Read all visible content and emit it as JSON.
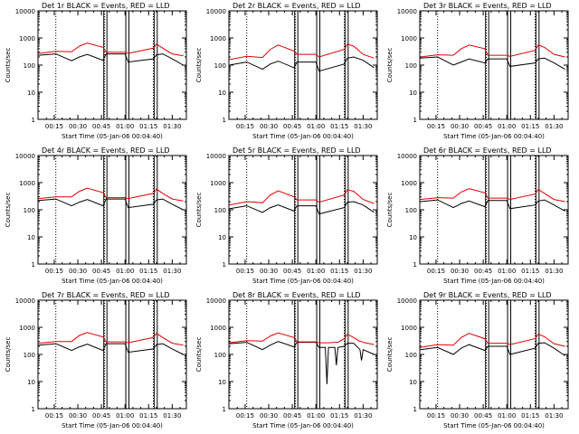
{
  "colors": {
    "events": "#000000",
    "lld": "#e00000",
    "axis": "#000000",
    "background": "#ffffff"
  },
  "common": {
    "ylabel": "Counts/sec",
    "xlabel": "Start Time (05-Jan-06 00:04:40)",
    "yscale": "log",
    "ylim": [
      1,
      10000
    ],
    "ytick_labels": [
      "1",
      "10",
      "100",
      "1000",
      "10000"
    ],
    "x_unit": "minutes",
    "xlim": [
      4.67,
      99
    ],
    "xtick_values": [
      15,
      30,
      45,
      60,
      75,
      90
    ],
    "xtick_labels": [
      "00:15",
      "00:30",
      "00:45",
      "01:00",
      "01:15",
      "01:30"
    ],
    "dotted_lines": [
      16,
      47,
      78
    ],
    "gap_markers": [
      [
        46.5,
        48.5
      ],
      [
        60.5,
        62.5
      ],
      [
        78.5,
        80.5
      ]
    ]
  },
  "chart_data": [
    {
      "type": "line",
      "title": "Det 1r  BLACK = Events, RED = LLD",
      "x": [
        5,
        16,
        26,
        31,
        36,
        46,
        48,
        60,
        62,
        78,
        80,
        84,
        90,
        97
      ],
      "series": [
        {
          "name": "Events",
          "values": [
            230,
            260,
            145,
            200,
            250,
            150,
            260,
            260,
            130,
            170,
            240,
            260,
            170,
            100
          ]
        },
        {
          "name": "LLD",
          "values": [
            270,
            320,
            310,
            500,
            650,
            450,
            300,
            300,
            270,
            420,
            600,
            420,
            260,
            220
          ]
        }
      ]
    },
    {
      "type": "line",
      "title": "Det 2r  BLACK = Events, RED = LLD",
      "x": [
        5,
        16,
        26,
        31,
        36,
        46,
        48,
        60,
        62,
        78,
        80,
        84,
        90,
        97
      ],
      "series": [
        {
          "name": "Events",
          "values": [
            100,
            130,
            70,
            110,
            140,
            80,
            130,
            130,
            60,
            110,
            180,
            200,
            150,
            80
          ]
        },
        {
          "name": "LLD",
          "values": [
            160,
            210,
            190,
            380,
            550,
            330,
            250,
            250,
            200,
            380,
            600,
            500,
            250,
            180
          ]
        }
      ]
    },
    {
      "type": "line",
      "title": "Det 3r  BLACK = Events, RED = LLD",
      "x": [
        5,
        16,
        26,
        31,
        36,
        46,
        48,
        60,
        62,
        78,
        80,
        84,
        90,
        97
      ],
      "series": [
        {
          "name": "Events",
          "values": [
            180,
            200,
            100,
            130,
            170,
            120,
            170,
            170,
            90,
            120,
            170,
            180,
            120,
            70
          ]
        },
        {
          "name": "LLD",
          "values": [
            200,
            240,
            230,
            400,
            550,
            400,
            230,
            230,
            210,
            350,
            550,
            450,
            250,
            200
          ]
        }
      ]
    },
    {
      "type": "line",
      "title": "Det 4r  BLACK = Events, RED = LLD",
      "x": [
        5,
        16,
        26,
        31,
        36,
        46,
        48,
        60,
        62,
        78,
        80,
        84,
        90,
        97
      ],
      "series": [
        {
          "name": "Events",
          "values": [
            220,
            250,
            140,
            190,
            240,
            140,
            250,
            250,
            120,
            160,
            230,
            250,
            160,
            100
          ]
        },
        {
          "name": "LLD",
          "values": [
            260,
            300,
            300,
            480,
            620,
            430,
            280,
            280,
            260,
            400,
            580,
            400,
            250,
            210
          ]
        }
      ]
    },
    {
      "type": "line",
      "title": "Det 5r  BLACK = Events, RED = LLD",
      "x": [
        5,
        16,
        26,
        31,
        36,
        46,
        48,
        60,
        62,
        78,
        80,
        84,
        90,
        97
      ],
      "series": [
        {
          "name": "Events",
          "values": [
            110,
            140,
            80,
            120,
            150,
            90,
            140,
            140,
            70,
            120,
            190,
            200,
            150,
            80
          ]
        },
        {
          "name": "LLD",
          "values": [
            150,
            200,
            180,
            350,
            500,
            300,
            230,
            230,
            190,
            350,
            550,
            480,
            240,
            170
          ]
        }
      ]
    },
    {
      "type": "line",
      "title": "Det 6r  BLACK = Events, RED = LLD",
      "x": [
        5,
        16,
        26,
        31,
        36,
        46,
        48,
        60,
        62,
        78,
        80,
        84,
        90,
        97
      ],
      "series": [
        {
          "name": "Events",
          "values": [
            200,
            230,
            120,
            170,
            210,
            130,
            220,
            220,
            110,
            150,
            210,
            230,
            150,
            90
          ]
        },
        {
          "name": "LLD",
          "values": [
            240,
            280,
            270,
            450,
            600,
            420,
            270,
            270,
            240,
            380,
            560,
            400,
            240,
            200
          ]
        }
      ]
    },
    {
      "type": "line",
      "title": "Det 7r  BLACK = Events, RED = LLD",
      "x": [
        5,
        16,
        26,
        31,
        36,
        46,
        48,
        60,
        62,
        78,
        80,
        84,
        90,
        97
      ],
      "series": [
        {
          "name": "Events",
          "values": [
            220,
            250,
            140,
            190,
            240,
            140,
            250,
            250,
            120,
            160,
            230,
            250,
            160,
            100
          ]
        },
        {
          "name": "LLD",
          "values": [
            260,
            300,
            300,
            500,
            640,
            440,
            290,
            290,
            270,
            420,
            600,
            420,
            260,
            220
          ]
        }
      ]
    },
    {
      "type": "line",
      "title": "Det 8r  BLACK = Events, RED = LLD",
      "x": [
        5,
        16,
        26,
        31,
        36,
        46,
        48,
        60,
        62,
        66,
        67,
        68,
        72,
        73,
        74,
        78,
        80,
        84,
        88,
        89,
        90,
        97
      ],
      "series": [
        {
          "name": "Events",
          "values": [
            250,
            280,
            150,
            220,
            300,
            190,
            280,
            280,
            180,
            180,
            8,
            180,
            180,
            40,
            180,
            200,
            260,
            260,
            150,
            60,
            150,
            100
          ]
        },
        {
          "name": "LLD",
          "values": [
            270,
            320,
            310,
            480,
            620,
            420,
            290,
            290,
            270,
            270,
            270,
            270,
            280,
            280,
            280,
            380,
            560,
            420,
            300,
            300,
            280,
            230
          ]
        }
      ]
    },
    {
      "type": "line",
      "title": "Det 9r  BLACK = Events, RED = LLD",
      "x": [
        5,
        16,
        26,
        31,
        36,
        46,
        48,
        60,
        62,
        78,
        80,
        84,
        90,
        97
      ],
      "series": [
        {
          "name": "Events",
          "values": [
            150,
            180,
            100,
            170,
            230,
            140,
            200,
            200,
            100,
            170,
            260,
            270,
            170,
            90
          ]
        },
        {
          "name": "LLD",
          "values": [
            180,
            230,
            220,
            420,
            600,
            380,
            260,
            260,
            230,
            380,
            560,
            450,
            250,
            200
          ]
        }
      ]
    }
  ]
}
